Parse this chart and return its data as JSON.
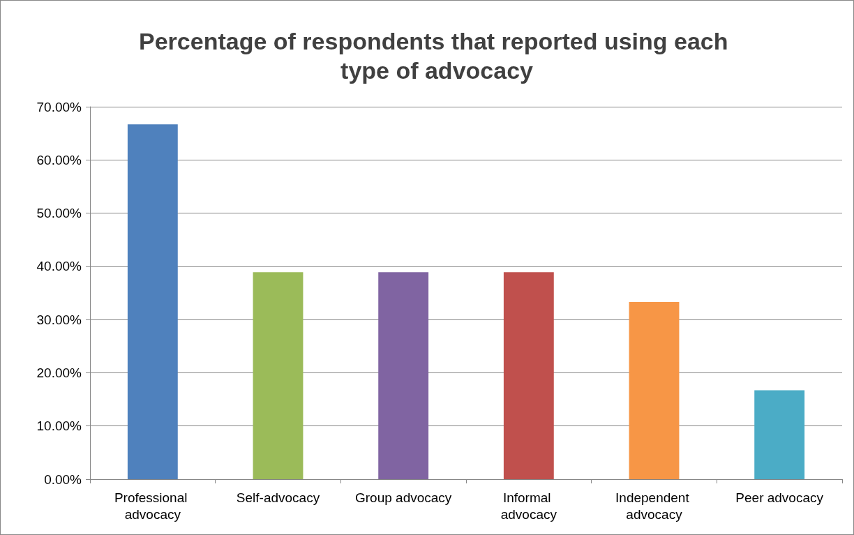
{
  "chart_data": {
    "type": "bar",
    "title": "Percentage of respondents that reported using each type of advocacy",
    "categories": [
      "Professional advocacy",
      "Self-advocacy",
      "Group advocacy",
      "Informal advocacy",
      "Independent advocacy",
      "Peer advocacy"
    ],
    "values": [
      66.7,
      38.9,
      38.9,
      38.9,
      33.3,
      16.7
    ],
    "colors": [
      "#4f81bd",
      "#9bbb59",
      "#8064a2",
      "#c0504d",
      "#f79646",
      "#4bacc6"
    ],
    "ylim": [
      0,
      70
    ],
    "yticks": [
      {
        "value": 0,
        "label": "0.00%"
      },
      {
        "value": 10,
        "label": "10.00%"
      },
      {
        "value": 20,
        "label": "20.00%"
      },
      {
        "value": 30,
        "label": "30.00%"
      },
      {
        "value": 40,
        "label": "40.00%"
      },
      {
        "value": 50,
        "label": "50.00%"
      },
      {
        "value": 60,
        "label": "60.00%"
      },
      {
        "value": 70,
        "label": "70.00%"
      }
    ],
    "grid": "y"
  }
}
